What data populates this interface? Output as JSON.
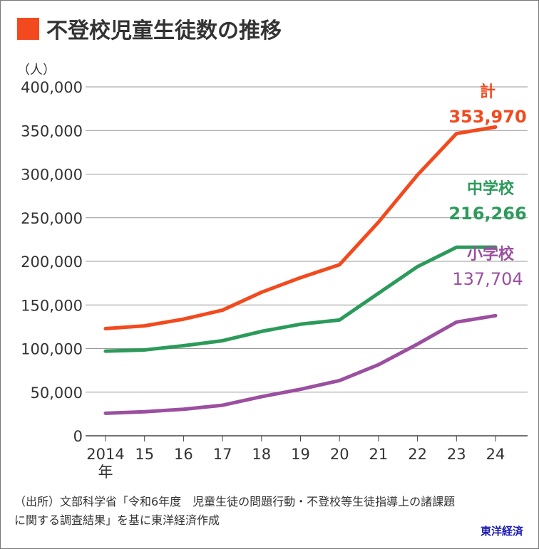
{
  "chart_data": {
    "type": "line",
    "title": "不登校児童生徒数の推移",
    "ylabel": "（人）",
    "x_tick_labels": [
      "2014",
      "15",
      "16",
      "17",
      "18",
      "19",
      "20",
      "21",
      "22",
      "23",
      "24"
    ],
    "x_first_suffix": "年",
    "x": [
      2014,
      2015,
      2016,
      2017,
      2018,
      2019,
      2020,
      2021,
      2022,
      2023,
      2024
    ],
    "ylim": [
      0,
      400000
    ],
    "y_ticks": [
      0,
      50000,
      100000,
      150000,
      200000,
      250000,
      300000,
      350000,
      400000
    ],
    "y_tick_labels": [
      "0",
      "50,000",
      "100,000",
      "150,000",
      "200,000",
      "250,000",
      "300,000",
      "350,000",
      "400,000"
    ],
    "grid": true,
    "series": [
      {
        "name": "計",
        "color": "#f24a1e",
        "end_label": "353,970",
        "values": [
          122897,
          126009,
          133683,
          144031,
          164528,
          181272,
          196127,
          244940,
          299048,
          346482,
          353970
        ]
      },
      {
        "name": "中学校",
        "color": "#2c9a5a",
        "end_label": "216,266",
        "values": [
          97033,
          98408,
          103235,
          108999,
          119687,
          127922,
          132777,
          163442,
          193936,
          216112,
          216266
        ]
      },
      {
        "name": "小学校",
        "color": "#9b4fa0",
        "end_label": "137,704",
        "values": [
          25864,
          27583,
          30448,
          35032,
          44841,
          53350,
          63350,
          81498,
          105112,
          130370,
          137704
        ]
      }
    ]
  },
  "source": {
    "line1": "（出所）文部科学省「令和6年度　児童生徒の問題行動・不登校等生徒指導上の諸課題",
    "line2": "に関する調査結果」を基に東洋経済作成"
  },
  "logo": "東洋経済"
}
